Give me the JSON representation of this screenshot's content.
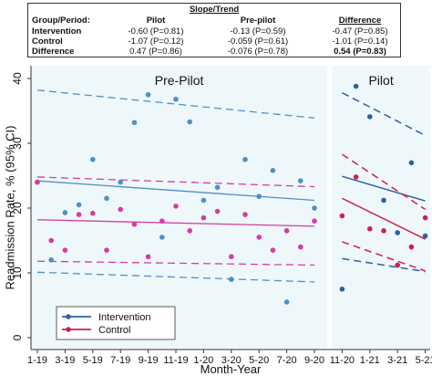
{
  "table": {
    "title": "Slope/Trend",
    "header": [
      "Group/Period:",
      "Pilot",
      "Pre-pilot",
      "Difference"
    ],
    "rows": [
      [
        "Intervention",
        "-0.60 (P=0.81)",
        "-0.13 (P=0.59)",
        "-0.47 (P=0.85)"
      ],
      [
        "Control",
        "-1.07 (P=0.12)",
        "-0.059 (P=0.61)",
        "-1.01 (P=0.14)"
      ],
      [
        "Difference",
        "0.47 (P=0.86)",
        "-0.076 (P=0.78)",
        "0.54 (P=0.83)"
      ]
    ]
  },
  "chart_data": {
    "type": "scatter",
    "ylabel": "Readmission Rate, % (95% CI)",
    "xlabel": "Month-Year",
    "ylim": [
      0,
      40
    ],
    "yticks": [
      0,
      10,
      20,
      30,
      40
    ],
    "xticks": [
      "1-19",
      "3-19",
      "5-19",
      "7-19",
      "9-19",
      "11-19",
      "1-20",
      "3-20",
      "5-20",
      "7-20",
      "9-20",
      "11-20",
      "1-21",
      "3-21",
      "5-21"
    ],
    "panels": [
      {
        "label": "Pre-Pilot",
        "months": [
          1,
          22
        ]
      },
      {
        "label": "Pilot",
        "months": [
          23,
          29
        ]
      }
    ],
    "colors": {
      "intervention": "#2d5fa0",
      "control": "#cc2050",
      "prepilot_intervention": "#4f8fc4",
      "prepilot_control": "#d93a9e",
      "panel_bg": "#eef8fb"
    },
    "series": [
      {
        "name": "Intervention",
        "points": [
          [
            1,
            24
          ],
          [
            2,
            12
          ],
          [
            3,
            19.3
          ],
          [
            4,
            20.5
          ],
          [
            5,
            27.5
          ],
          [
            6,
            21.5
          ],
          [
            7,
            24
          ],
          [
            8,
            33.2
          ],
          [
            9,
            37.5
          ],
          [
            10,
            15.5
          ],
          [
            11,
            36.8
          ],
          [
            12,
            33.3
          ],
          [
            13,
            21.2
          ],
          [
            14,
            23.2
          ],
          [
            15,
            9
          ],
          [
            16,
            27.5
          ],
          [
            17,
            21.8
          ],
          [
            18,
            25.8
          ],
          [
            19,
            5.5
          ],
          [
            20,
            24.2
          ],
          [
            21,
            20
          ],
          [
            23,
            7.5
          ],
          [
            24,
            38.8
          ],
          [
            25,
            34.1
          ],
          [
            26,
            21.2
          ],
          [
            27,
            16.2
          ],
          [
            28,
            27
          ],
          [
            29,
            15.7
          ]
        ],
        "fit_prepilot": [
          [
            1,
            24.2
          ],
          [
            21,
            21.2
          ]
        ],
        "ci_upper_prepilot": [
          [
            1,
            38.2
          ],
          [
            21,
            33.9
          ]
        ],
        "ci_lower_prepilot": [
          [
            1,
            10.1
          ],
          [
            21,
            8.6
          ]
        ],
        "fit_pilot": [
          [
            23,
            24.9
          ],
          [
            29,
            21.1
          ]
        ],
        "ci_upper_pilot": [
          [
            23,
            37.8
          ],
          [
            29,
            31.2
          ]
        ],
        "ci_lower_pilot": [
          [
            23,
            12.2
          ],
          [
            29,
            10.2
          ]
        ]
      },
      {
        "name": "Control",
        "points": [
          [
            1,
            24
          ],
          [
            2,
            15
          ],
          [
            3,
            13.5
          ],
          [
            4,
            19
          ],
          [
            5,
            19.2
          ],
          [
            6,
            13.5
          ],
          [
            7,
            19.8
          ],
          [
            8,
            17.5
          ],
          [
            9,
            12.5
          ],
          [
            10,
            18
          ],
          [
            11,
            20.3
          ],
          [
            12,
            16.5
          ],
          [
            13,
            18.5
          ],
          [
            14,
            19.5
          ],
          [
            15,
            12.5
          ],
          [
            16,
            19
          ],
          [
            17,
            15.5
          ],
          [
            18,
            13.5
          ],
          [
            19,
            16.5
          ],
          [
            20,
            14
          ],
          [
            21,
            18
          ],
          [
            23,
            18.8
          ],
          [
            24,
            24.8
          ],
          [
            25,
            16.8
          ],
          [
            26,
            16.5
          ],
          [
            27,
            11.2
          ],
          [
            28,
            14
          ],
          [
            29,
            18.5
          ]
        ],
        "fit_prepilot": [
          [
            1,
            18.2
          ],
          [
            21,
            17.2
          ]
        ],
        "ci_upper_prepilot": [
          [
            1,
            24.8
          ],
          [
            21,
            23.3
          ]
        ],
        "ci_lower_prepilot": [
          [
            1,
            11.8
          ],
          [
            21,
            11.2
          ]
        ],
        "fit_pilot": [
          [
            23,
            21.5
          ],
          [
            29,
            15.2
          ]
        ],
        "ci_upper_pilot": [
          [
            23,
            28.3
          ],
          [
            29,
            19.8
          ]
        ],
        "ci_lower_pilot": [
          [
            23,
            14.8
          ],
          [
            29,
            10.3
          ]
        ]
      }
    ],
    "legend": {
      "entries": [
        "Intervention",
        "Control"
      ],
      "placement": "bottom-left"
    }
  }
}
